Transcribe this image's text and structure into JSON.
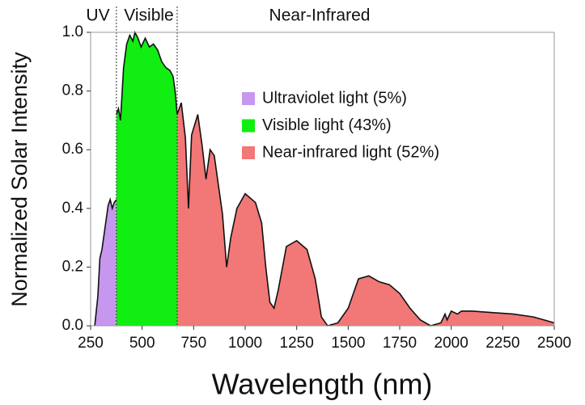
{
  "chart_data": {
    "type": "area",
    "xlabel": "Wavelength (nm)",
    "ylabel": "Normalized Solar Intensity",
    "annotations": [
      "UV",
      "Visible",
      "Near-Infrared"
    ],
    "xlim": [
      250,
      2500
    ],
    "xticks": [
      250,
      500,
      750,
      1000,
      1250,
      1500,
      1750,
      2000,
      2250,
      2500
    ],
    "ylim": [
      0,
      1
    ],
    "yticks": [
      {
        "value": 0,
        "label": "0.0"
      },
      0.2,
      0.4,
      0.6,
      0.8,
      {
        "value": 1,
        "label": "1.0"
      }
    ],
    "series": [
      {
        "name": "Ultraviolet light (5%)",
        "color": "#c797f0",
        "x": [
          270,
          285,
          295,
          305,
          315,
          325,
          335,
          345,
          355,
          365,
          375
        ],
        "values": [
          0,
          0.1,
          0.23,
          0.26,
          0.31,
          0.36,
          0.41,
          0.43,
          0.4,
          0.42,
          0.43
        ]
      },
      {
        "name": "Visible light (43%)",
        "color": "#11ee11",
        "x": [
          375,
          385,
          395,
          410,
          425,
          440,
          455,
          465,
          480,
          495,
          515,
          535,
          555,
          575,
          595,
          615,
          635,
          650,
          660,
          670
        ],
        "values": [
          0.72,
          0.74,
          0.7,
          0.88,
          0.96,
          0.99,
          0.97,
          1.0,
          0.98,
          0.95,
          0.98,
          0.95,
          0.96,
          0.94,
          0.9,
          0.88,
          0.87,
          0.85,
          0.8,
          0.72
        ]
      },
      {
        "name": "Near-infrared light (52%)",
        "color": "#f27777",
        "x": [
          670,
          690,
          710,
          725,
          740,
          770,
          790,
          810,
          830,
          850,
          870,
          890,
          910,
          930,
          960,
          1000,
          1050,
          1080,
          1100,
          1120,
          1140,
          1160,
          1200,
          1250,
          1300,
          1340,
          1370,
          1400,
          1450,
          1500,
          1550,
          1600,
          1650,
          1700,
          1750,
          1800,
          1850,
          1900,
          1950,
          1970,
          1980,
          2000,
          2030,
          2050,
          2100,
          2200,
          2300,
          2400,
          2450,
          2500
        ],
        "values": [
          0.72,
          0.76,
          0.64,
          0.4,
          0.65,
          0.72,
          0.62,
          0.5,
          0.6,
          0.58,
          0.48,
          0.38,
          0.2,
          0.3,
          0.4,
          0.45,
          0.42,
          0.35,
          0.2,
          0.08,
          0.06,
          0.12,
          0.27,
          0.29,
          0.26,
          0.16,
          0.03,
          0,
          0.01,
          0.06,
          0.16,
          0.17,
          0.15,
          0.14,
          0.11,
          0.06,
          0.02,
          0,
          0.01,
          0.04,
          0.02,
          0.05,
          0.04,
          0.05,
          0.05,
          0.045,
          0.04,
          0.03,
          0.02,
          0.01
        ]
      }
    ]
  }
}
